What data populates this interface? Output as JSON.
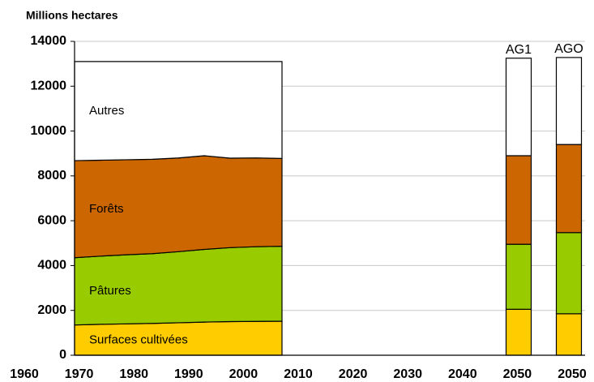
{
  "chart_data": {
    "type": "stacked-area",
    "y_label": "Millions hectares",
    "ylim": [
      0,
      14000
    ],
    "yticks": [
      0,
      2000,
      4000,
      6000,
      8000,
      10000,
      12000,
      14000
    ],
    "grid": true,
    "x_labels": [
      1960,
      1970,
      1980,
      1990,
      2000,
      2010,
      2020,
      2030,
      2040,
      2050,
      2050
    ],
    "x": [
      1961,
      1966,
      1971,
      1976,
      1981,
      1986,
      1991,
      1996,
      2001
    ],
    "scenarios": [
      "AG1",
      "AGO"
    ],
    "series": [
      {
        "name": "Surfaces cultivées",
        "color": "#ffcc00",
        "values": [
          1350,
          1380,
          1400,
          1420,
          1450,
          1480,
          1500,
          1510,
          1520
        ],
        "scenario_values": [
          2050,
          1850
        ]
      },
      {
        "name": "Pâtures",
        "color": "#99cc00",
        "values": [
          3000,
          3040,
          3080,
          3110,
          3170,
          3240,
          3300,
          3330,
          3340
        ],
        "scenario_values": [
          2900,
          3620
        ]
      },
      {
        "name": "Forêts",
        "color": "#cc6600",
        "values": [
          4330,
          4280,
          4240,
          4210,
          4180,
          4180,
          3990,
          3960,
          3920
        ],
        "scenario_values": [
          3950,
          3930
        ]
      },
      {
        "name": "Autres",
        "color": "#ffffff",
        "values": [
          4420,
          4400,
          4380,
          4360,
          4300,
          4200,
          4310,
          4300,
          4320
        ],
        "scenario_values": [
          4350,
          3880
        ]
      }
    ]
  }
}
